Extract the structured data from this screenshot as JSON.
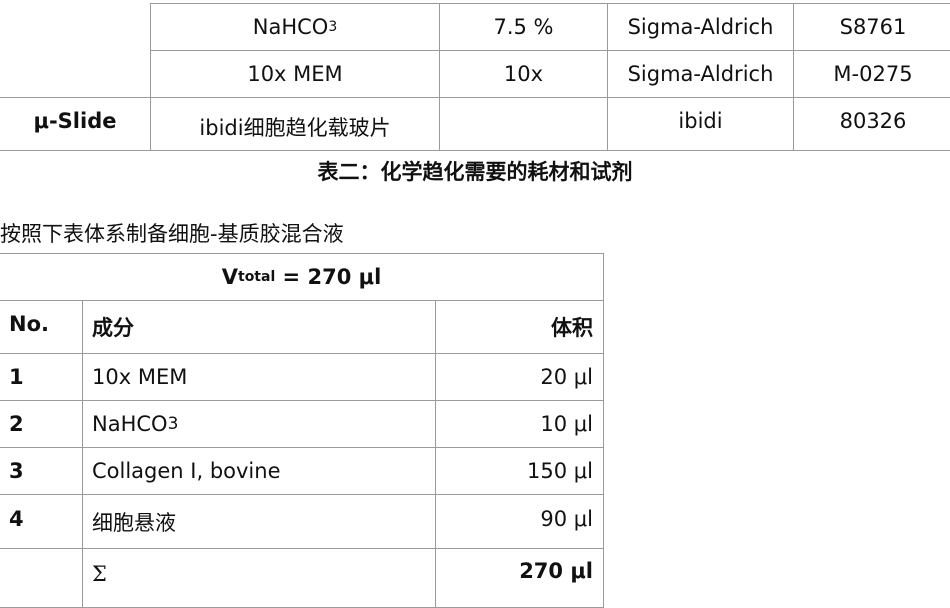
{
  "table1": {
    "rows": [
      {
        "name_main": "NaHCO",
        "name_sub": "3",
        "conc": "7.5 %",
        "supplier": "Sigma-Aldrich",
        "cat": "S8761"
      },
      {
        "name_main": "10x MEM",
        "name_sub": "",
        "conc": "10x",
        "supplier": "Sigma-Aldrich",
        "cat": "M-0275"
      },
      {
        "group": "μ-Slide",
        "name_main": "ibidi细胞趋化载玻片",
        "conc": "",
        "supplier": "ibidi",
        "cat": "80326"
      }
    ],
    "caption": "表二：化学趋化需要的耗材和试剂"
  },
  "paragraph": "按照下表体系制备细胞-基质胶混合液",
  "table2": {
    "title_main": "V",
    "title_sub": "total",
    "title_rest": " = 270 μl",
    "headers": [
      "No.",
      "成分",
      "体积"
    ],
    "rows": [
      {
        "no": "1",
        "component": "10x MEM",
        "component_sub": "",
        "volume": "20 μl"
      },
      {
        "no": "2",
        "component": "NaHCO",
        "component_sub": "3",
        "volume": "10 μl"
      },
      {
        "no": "3",
        "component": "Collagen I, bovine",
        "component_sub": "",
        "volume": "150 μl"
      },
      {
        "no": "4",
        "component": "细胞悬液",
        "component_sub": "",
        "volume": "90 μl"
      }
    ],
    "sum_symbol": "Σ",
    "sum_value": "270 μl"
  }
}
